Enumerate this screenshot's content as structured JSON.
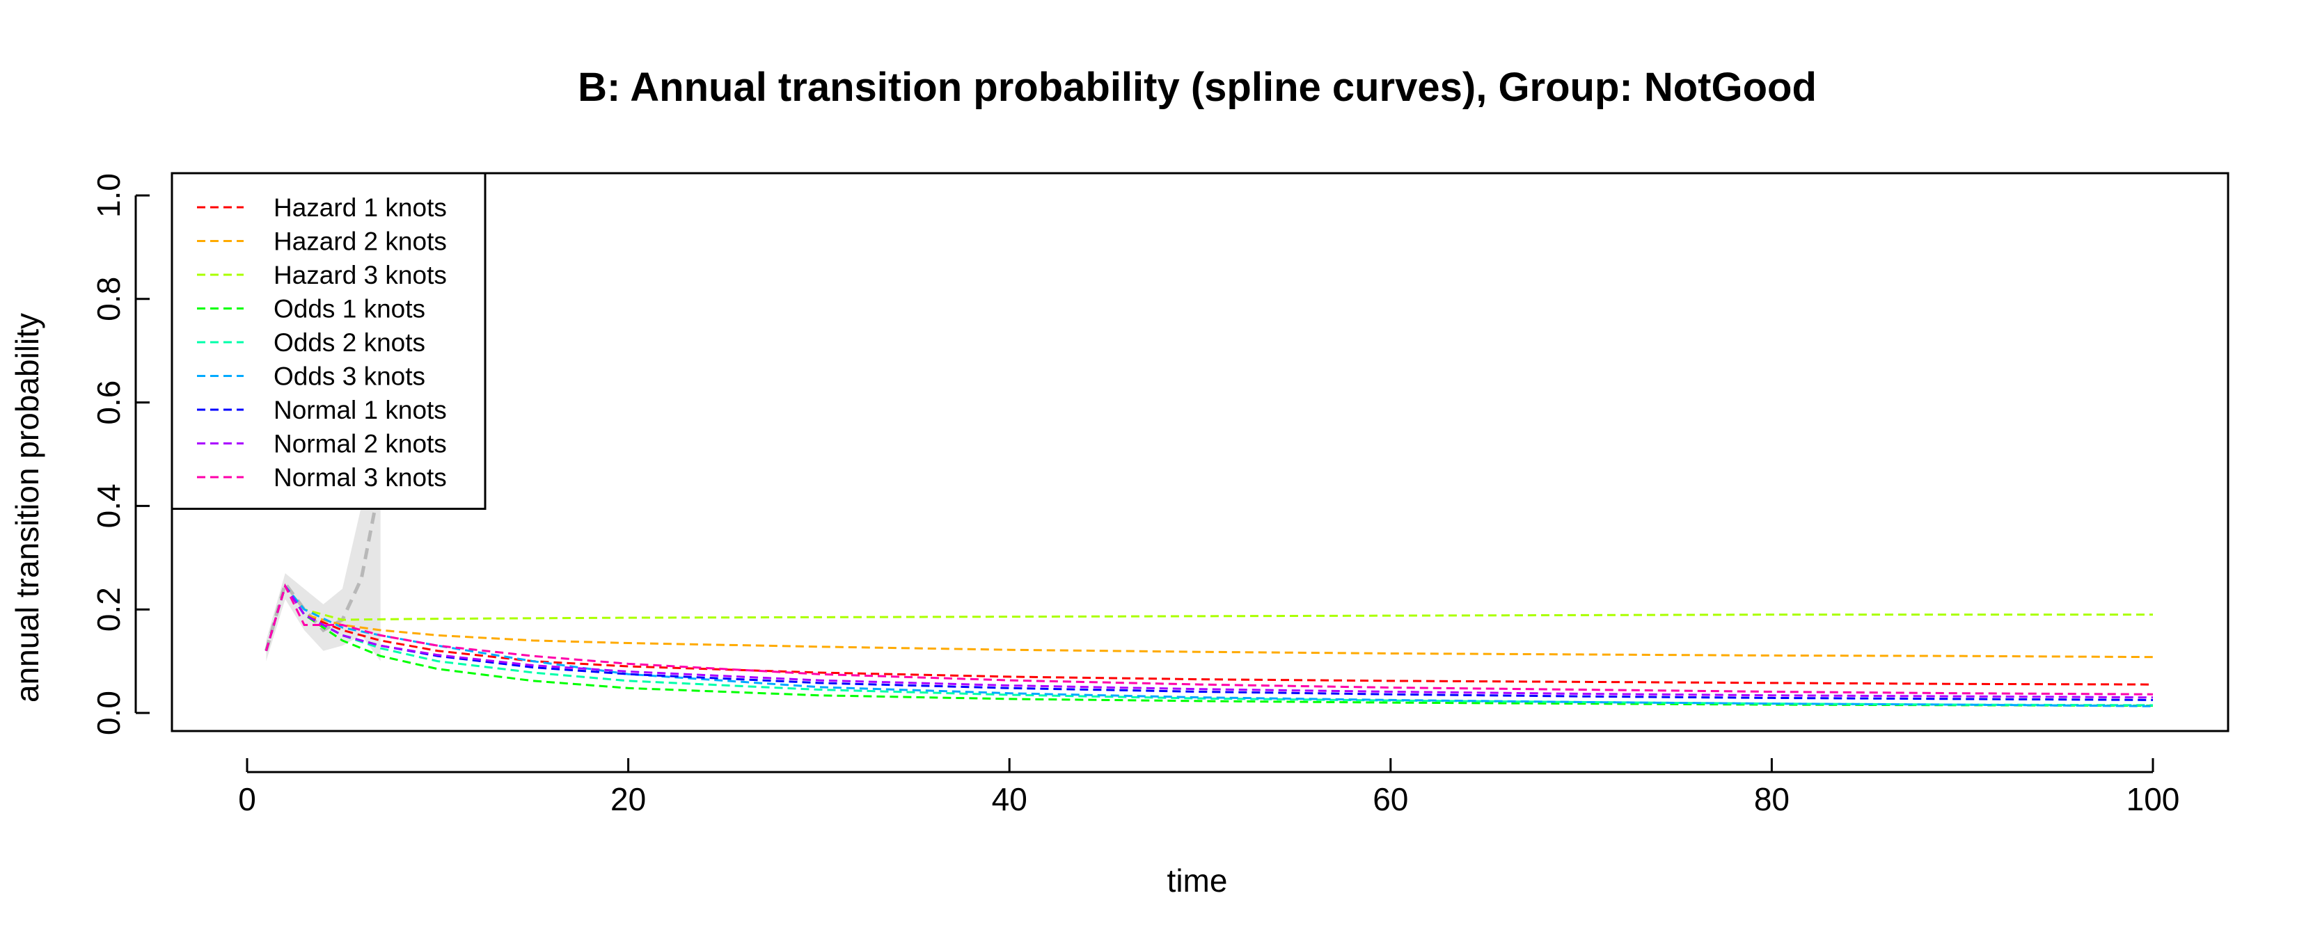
{
  "chart_data": {
    "type": "line",
    "title": "B: Annual transition probability (spline curves), Group: NotGood",
    "xlabel": "time",
    "ylabel": "annual transition probability",
    "xlim": [
      0,
      100
    ],
    "ylim": [
      0,
      1
    ],
    "x_ticks": [
      "0",
      "20",
      "40",
      "60",
      "80",
      "100"
    ],
    "y_ticks": [
      "0.0",
      "0.2",
      "0.4",
      "0.6",
      "0.8",
      "1.0"
    ],
    "legend_position": "top-left",
    "grid": false,
    "line_style": "dashed",
    "observed_band": {
      "color": "#e6e6e6",
      "line_color": "#b8b8b8",
      "x": [
        1,
        2,
        3,
        4,
        5,
        6,
        7
      ],
      "y": [
        0.12,
        0.25,
        0.2,
        0.16,
        0.18,
        0.26,
        0.45
      ],
      "lower": [
        0.1,
        0.22,
        0.16,
        0.12,
        0.13,
        0.15,
        0.1
      ],
      "upper": [
        0.14,
        0.27,
        0.24,
        0.21,
        0.24,
        0.4,
        0.58
      ]
    },
    "series": [
      {
        "name": "Hazard 1 knots",
        "color": "#ff0000",
        "x": [
          1,
          2,
          3,
          5,
          7,
          10,
          15,
          20,
          30,
          40,
          50,
          60,
          70,
          80,
          90,
          100
        ],
        "y": [
          0.12,
          0.245,
          0.19,
          0.16,
          0.14,
          0.12,
          0.1,
          0.09,
          0.078,
          0.07,
          0.065,
          0.062,
          0.06,
          0.058,
          0.056,
          0.055
        ]
      },
      {
        "name": "Hazard 2 knots",
        "color": "#ffaa00",
        "x": [
          1,
          2,
          3,
          5,
          7,
          10,
          15,
          20,
          30,
          40,
          50,
          60,
          70,
          80,
          90,
          100
        ],
        "y": [
          0.12,
          0.245,
          0.19,
          0.17,
          0.16,
          0.15,
          0.14,
          0.135,
          0.128,
          0.122,
          0.118,
          0.115,
          0.113,
          0.111,
          0.11,
          0.108
        ]
      },
      {
        "name": "Hazard 3 knots",
        "color": "#aaff00",
        "x": [
          1,
          2,
          3,
          5,
          7,
          10,
          15,
          20,
          30,
          40,
          50,
          60,
          70,
          80,
          90,
          100
        ],
        "y": [
          0.12,
          0.245,
          0.2,
          0.18,
          0.181,
          0.182,
          0.183,
          0.184,
          0.185,
          0.186,
          0.187,
          0.188,
          0.189,
          0.19,
          0.19,
          0.19
        ]
      },
      {
        "name": "Odds 1 knots",
        "color": "#00ff00",
        "x": [
          1,
          2,
          3,
          5,
          7,
          10,
          15,
          20,
          30,
          40,
          50,
          60,
          70,
          80,
          90,
          100
        ],
        "y": [
          0.12,
          0.245,
          0.19,
          0.14,
          0.11,
          0.085,
          0.062,
          0.048,
          0.034,
          0.027,
          0.023,
          0.02,
          0.018,
          0.016,
          0.015,
          0.014
        ]
      },
      {
        "name": "Odds 2 knots",
        "color": "#00ffaa",
        "x": [
          1,
          2,
          3,
          5,
          7,
          10,
          15,
          20,
          30,
          40,
          50,
          60,
          70,
          80,
          90,
          100
        ],
        "y": [
          0.12,
          0.245,
          0.19,
          0.15,
          0.125,
          0.1,
          0.078,
          0.062,
          0.045,
          0.035,
          0.028,
          0.024,
          0.021,
          0.018,
          0.016,
          0.015
        ]
      },
      {
        "name": "Odds 3 knots",
        "color": "#00aaff",
        "x": [
          1,
          2,
          3,
          5,
          7,
          10,
          15,
          20,
          30,
          40,
          50,
          60,
          70,
          80,
          90,
          100
        ],
        "y": [
          0.12,
          0.245,
          0.2,
          0.165,
          0.15,
          0.13,
          0.1,
          0.075,
          0.05,
          0.038,
          0.03,
          0.025,
          0.021,
          0.018,
          0.016,
          0.013
        ]
      },
      {
        "name": "Normal 1 knots",
        "color": "#0000ff",
        "x": [
          1,
          2,
          3,
          5,
          7,
          10,
          15,
          20,
          30,
          40,
          50,
          60,
          70,
          80,
          90,
          100
        ],
        "y": [
          0.12,
          0.245,
          0.19,
          0.15,
          0.13,
          0.11,
          0.088,
          0.075,
          0.058,
          0.048,
          0.041,
          0.036,
          0.032,
          0.029,
          0.027,
          0.025
        ]
      },
      {
        "name": "Normal 2 knots",
        "color": "#aa00ff",
        "x": [
          1,
          2,
          3,
          5,
          7,
          10,
          15,
          20,
          30,
          40,
          50,
          60,
          70,
          80,
          90,
          100
        ],
        "y": [
          0.12,
          0.245,
          0.19,
          0.15,
          0.13,
          0.112,
          0.092,
          0.08,
          0.063,
          0.053,
          0.046,
          0.041,
          0.037,
          0.034,
          0.032,
          0.03
        ]
      },
      {
        "name": "Normal 3 knots",
        "color": "#ff00aa",
        "x": [
          1,
          2,
          3,
          5,
          7,
          10,
          15,
          20,
          30,
          40,
          50,
          60,
          70,
          80,
          90,
          100
        ],
        "y": [
          0.12,
          0.245,
          0.17,
          0.17,
          0.15,
          0.13,
          0.11,
          0.095,
          0.075,
          0.063,
          0.055,
          0.049,
          0.045,
          0.041,
          0.038,
          0.036
        ]
      }
    ]
  }
}
